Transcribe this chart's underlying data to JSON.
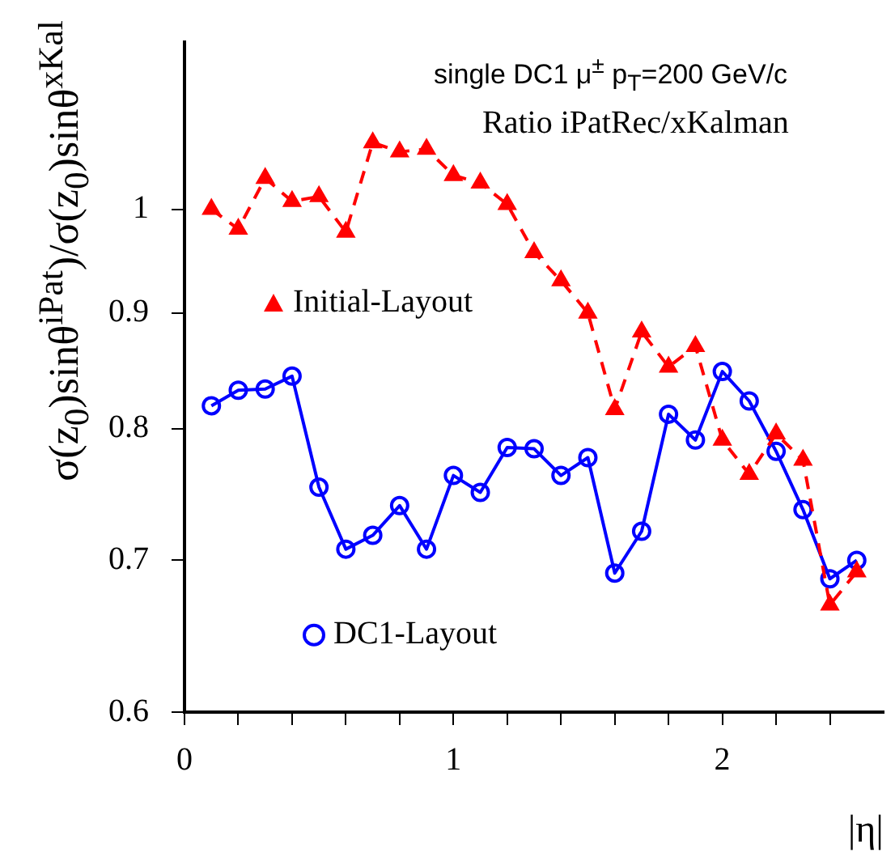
{
  "chart_data": {
    "type": "line",
    "xlabel": "|η|",
    "ylabel": "σ(z$_{0}$)sinθ$^{iPat}$)/σ(z$_{0}$)sinθ$^{xKal}$",
    "annotations": [
      "single DC1 μ$^{±}$ p$_{T}$=200 GeV/c",
      "Ratio iPatRec/xKalman"
    ],
    "series": [
      {
        "name": "Initial-Layout",
        "color": "#ff0000",
        "marker": "triangle",
        "line_style": "dashed",
        "x": [
          0.1,
          0.2,
          0.3,
          0.4,
          0.5,
          0.6,
          0.7,
          0.8,
          0.9,
          1.0,
          1.1,
          1.2,
          1.3,
          1.4,
          1.5,
          1.6,
          1.7,
          1.8,
          1.9,
          2.0,
          2.1,
          2.2,
          2.3,
          2.4,
          2.5
        ],
        "values": [
          1.0,
          0.98,
          1.032,
          1.008,
          1.013,
          0.977,
          1.07,
          1.06,
          1.063,
          1.035,
          1.027,
          1.005,
          0.957,
          0.93,
          0.9,
          0.816,
          0.883,
          0.852,
          0.87,
          0.791,
          0.764,
          0.796,
          0.775,
          0.669,
          0.692
        ]
      },
      {
        "name": "DC1-Layout",
        "color": "#0000ff",
        "marker": "circle",
        "line_style": "solid",
        "x": [
          0.1,
          0.2,
          0.3,
          0.4,
          0.5,
          0.6,
          0.7,
          0.8,
          0.9,
          1.0,
          1.1,
          1.2,
          1.3,
          1.4,
          1.5,
          1.6,
          1.7,
          1.8,
          1.9,
          2.0,
          2.1,
          2.2,
          2.3,
          2.4,
          2.5
        ],
        "values": [
          0.819,
          0.832,
          0.833,
          0.844,
          0.754,
          0.708,
          0.718,
          0.74,
          0.708,
          0.763,
          0.75,
          0.785,
          0.784,
          0.763,
          0.777,
          0.691,
          0.721,
          0.812,
          0.791,
          0.848,
          0.823,
          0.782,
          0.737,
          0.687,
          0.7
        ]
      }
    ],
    "xlim": [
      0,
      2.6
    ],
    "xticks": [
      0,
      {
        "value": 0.2,
        "label": null
      },
      {
        "value": 0.4,
        "label": null
      },
      {
        "value": 0.6,
        "label": null
      },
      {
        "value": 0.8,
        "label": null
      },
      1,
      {
        "value": 1.2,
        "label": null
      },
      {
        "value": 1.4,
        "label": null
      },
      {
        "value": 1.6,
        "label": null
      },
      {
        "value": 1.8,
        "label": null
      },
      2,
      {
        "value": 2.2,
        "label": null
      },
      {
        "value": 2.4,
        "label": null
      }
    ],
    "ylim": [
      0.6,
      1.185
    ],
    "yticks": [
      0.6,
      0.7,
      0.8,
      0.9,
      1
    ],
    "log": "y",
    "grid": false,
    "legend": "left"
  }
}
